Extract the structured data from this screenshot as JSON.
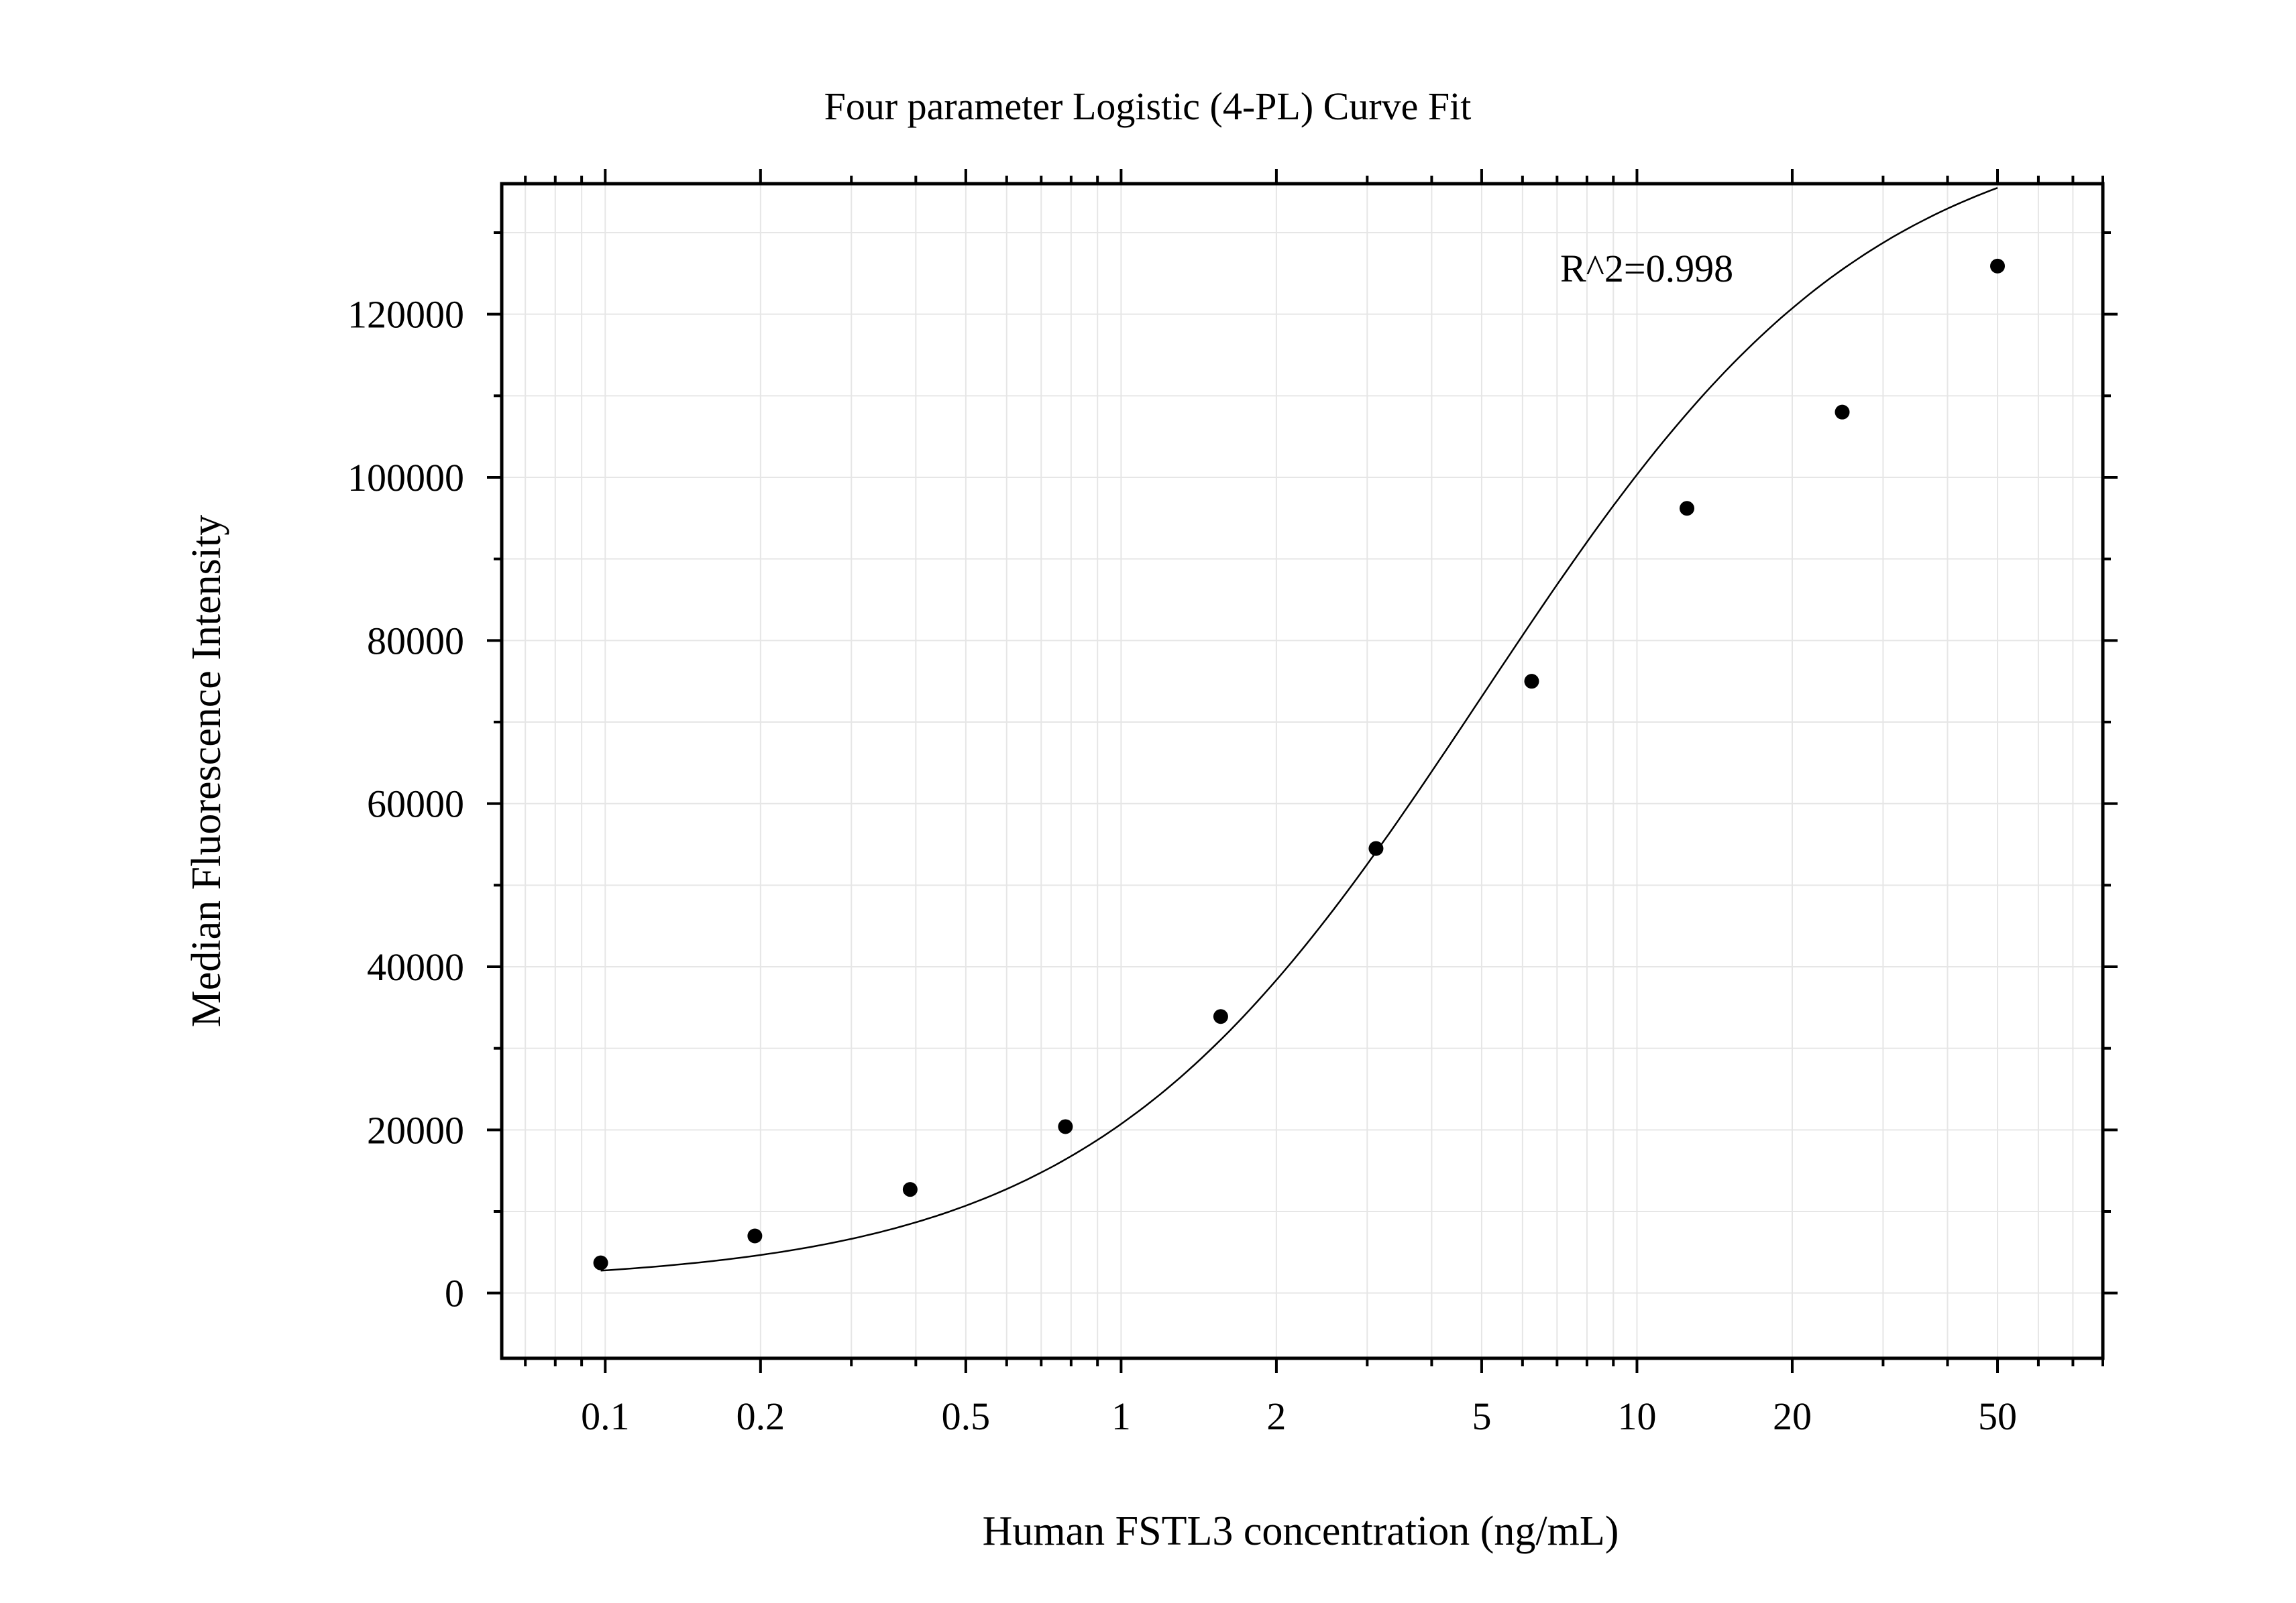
{
  "chart_data": {
    "type": "scatter",
    "title": "Four parameter Logistic (4-PL) Curve Fit",
    "xlabel": "Human FSTL3 concentration (ng/mL)",
    "ylabel": "Median Fluorescence Intensity",
    "xscale": "log",
    "xlim": [
      0.063,
      80
    ],
    "ylim": [
      -8000,
      136000
    ],
    "grid": true,
    "x_ticks": [
      {
        "value": 0.1,
        "label": "0.1"
      },
      {
        "value": 0.2,
        "label": "0.2"
      },
      {
        "value": 0.5,
        "label": "0.5"
      },
      {
        "value": 1,
        "label": "1"
      },
      {
        "value": 2,
        "label": "2"
      },
      {
        "value": 5,
        "label": "5"
      },
      {
        "value": 10,
        "label": "10"
      },
      {
        "value": 20,
        "label": "20"
      },
      {
        "value": 50,
        "label": "50"
      }
    ],
    "y_ticks": [
      {
        "value": 0,
        "label": "0"
      },
      {
        "value": 20000,
        "label": "20000"
      },
      {
        "value": 40000,
        "label": "40000"
      },
      {
        "value": 60000,
        "label": "60000"
      },
      {
        "value": 80000,
        "label": "80000"
      },
      {
        "value": 100000,
        "label": "100000"
      },
      {
        "value": 120000,
        "label": "120000"
      }
    ],
    "points": [
      {
        "x": 0.098,
        "y": 3700
      },
      {
        "x": 0.195,
        "y": 7000
      },
      {
        "x": 0.39,
        "y": 12700
      },
      {
        "x": 0.78,
        "y": 20400
      },
      {
        "x": 1.56,
        "y": 33900
      },
      {
        "x": 3.12,
        "y": 54500
      },
      {
        "x": 6.25,
        "y": 75000
      },
      {
        "x": 12.5,
        "y": 96200
      },
      {
        "x": 25,
        "y": 108000
      },
      {
        "x": 50,
        "y": 125900
      }
    ],
    "fit_curve": {
      "model": "4PL",
      "A": 1200,
      "B": 1.15,
      "C": 5.0,
      "D": 145000,
      "x_range": [
        0.098,
        50
      ]
    },
    "annotations": [
      {
        "text": "R^2=0.998"
      }
    ]
  }
}
